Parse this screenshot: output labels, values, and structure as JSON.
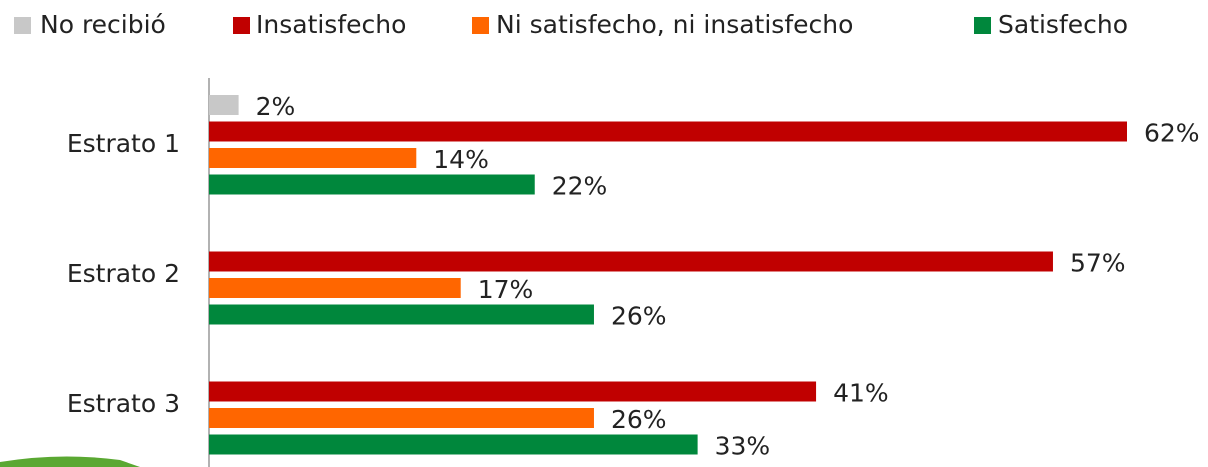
{
  "chart_data": {
    "type": "bar",
    "orientation": "horizontal",
    "categories": [
      "Estrato 1",
      "Estrato 2",
      "Estrato 3"
    ],
    "series": [
      {
        "name": "No recibió",
        "color": "#c8c8c8",
        "values": [
          2,
          null,
          null
        ],
        "value_labels": [
          "2%",
          null,
          null
        ]
      },
      {
        "name": "Insatisfecho",
        "color": "#c00000",
        "values": [
          62,
          57,
          41
        ],
        "value_labels": [
          "62%",
          "57%",
          "41%"
        ]
      },
      {
        "name": "Ni satisfecho, ni insatisfecho",
        "color": "#ff6600",
        "values": [
          14,
          17,
          26
        ],
        "value_labels": [
          "14%",
          "17%",
          "26%"
        ]
      },
      {
        "name": "Satisfecho",
        "color": "#00873c",
        "values": [
          22,
          26,
          33
        ],
        "value_labels": [
          "22%",
          "26%",
          "33%"
        ]
      }
    ],
    "legend": "top"
  }
}
